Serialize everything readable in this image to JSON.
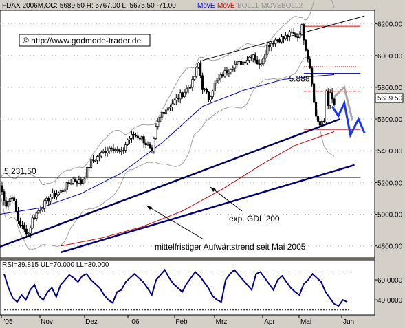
{
  "chart_data": [
    {
      "type": "candlestick",
      "header": {
        "symbol": "FDAX 2006M,CC",
        "ohlc": "C: 5689.50 H: 5767.00 L: 5675.50 -71.00",
        "legend": [
          {
            "name": "MovE",
            "color": "#0000cc"
          },
          {
            "name": "MovE",
            "color": "#cc0000"
          },
          {
            "name": "BOLL1",
            "color": "#909090"
          },
          {
            "name": "MOVS",
            "color": "#909090"
          },
          {
            "name": "BOLL2",
            "color": "#909090"
          }
        ]
      },
      "watermark": "© http://www.godmode-trader.de",
      "last_price": "5689.50",
      "x_tick_labels": [
        "'05",
        "Nov",
        "Dez",
        "'06",
        "Feb",
        "Mrz",
        "Apr",
        "Mai",
        "Jun"
      ],
      "y_ticks": [
        4800,
        5000,
        5200,
        5400,
        5600,
        5800,
        6000,
        6200
      ],
      "y_tick_labels": [
        "4800.00",
        "5000.00",
        "5200.00",
        "5400.00",
        "5600.00",
        "5800.00",
        "6000.00",
        "6200.00"
      ],
      "ylim": [
        4725,
        6285
      ],
      "xlim": [
        0,
        185
      ],
      "close_path": [
        [
          0,
          5180
        ],
        [
          3,
          5060
        ],
        [
          6,
          5120
        ],
        [
          9,
          4960
        ],
        [
          12,
          4900
        ],
        [
          14,
          4880
        ],
        [
          16,
          4970
        ],
        [
          20,
          5040
        ],
        [
          25,
          5110
        ],
        [
          30,
          5140
        ],
        [
          36,
          5220
        ],
        [
          40,
          5200
        ],
        [
          45,
          5330
        ],
        [
          50,
          5380
        ],
        [
          55,
          5430
        ],
        [
          60,
          5380
        ],
        [
          63,
          5470
        ],
        [
          66,
          5500
        ],
        [
          70,
          5480
        ],
        [
          73,
          5430
        ],
        [
          75,
          5380
        ],
        [
          77,
          5540
        ],
        [
          80,
          5640
        ],
        [
          85,
          5700
        ],
        [
          90,
          5760
        ],
        [
          95,
          5830
        ],
        [
          98,
          5950
        ],
        [
          100,
          5800
        ],
        [
          103,
          5730
        ],
        [
          106,
          5820
        ],
        [
          110,
          5880
        ],
        [
          115,
          5940
        ],
        [
          120,
          5960
        ],
        [
          125,
          6010
        ],
        [
          128,
          5930
        ],
        [
          132,
          6060
        ],
        [
          136,
          6100
        ],
        [
          140,
          6110
        ],
        [
          144,
          6140
        ],
        [
          147,
          6120
        ],
        [
          149,
          6180
        ],
        [
          151,
          6050
        ],
        [
          153,
          5930
        ],
        [
          154,
          5840
        ],
        [
          155,
          5700
        ],
        [
          156,
          5620
        ],
        [
          158,
          5560
        ],
        [
          160,
          5580
        ],
        [
          161,
          5780
        ],
        [
          162,
          5700
        ],
        [
          163,
          5750
        ],
        [
          165,
          5690
        ]
      ],
      "lines": {
        "ema_blue": [
          [
            0,
            5000
          ],
          [
            20,
            5040
          ],
          [
            40,
            5130
          ],
          [
            60,
            5260
          ],
          [
            80,
            5450
          ],
          [
            100,
            5680
          ],
          [
            120,
            5780
          ],
          [
            140,
            5850
          ],
          [
            155,
            5870
          ],
          [
            165,
            5880
          ]
        ],
        "ema_red_gdl200": [
          [
            30,
            4800
          ],
          [
            50,
            4850
          ],
          [
            70,
            4920
          ],
          [
            90,
            5020
          ],
          [
            110,
            5160
          ],
          [
            130,
            5320
          ],
          [
            145,
            5430
          ],
          [
            158,
            5490
          ],
          [
            165,
            5520
          ]
        ],
        "trend_mittelfristig": [
          [
            0,
            4795
          ],
          [
            168,
            5600
          ]
        ],
        "trend_lower": [
          [
            30,
            4760
          ],
          [
            175,
            5310
          ]
        ],
        "upper_channel": [
          [
            100,
            5970
          ],
          [
            180,
            6250
          ]
        ],
        "resistance_5231": [
          [
            0,
            5232
          ],
          [
            178,
            5232
          ]
        ],
        "pattern_grey": [
          [
            165,
            5740
          ],
          [
            170,
            5800
          ],
          [
            174,
            5590
          ]
        ],
        "pattern_blue": [
          [
            164,
            5680
          ],
          [
            167,
            5620
          ],
          [
            170,
            5700
          ],
          [
            173,
            5500
          ],
          [
            177,
            5600
          ],
          [
            180,
            5510
          ]
        ]
      },
      "horizontal_levels": [
        {
          "value": 6185,
          "color": "#dd0000"
        },
        {
          "value": 5930,
          "color": "#cc0000",
          "style": "dotted"
        },
        {
          "value": 5888,
          "color": "#0000aa"
        },
        {
          "value": 5775,
          "color": "#cc0000",
          "style": "dashed"
        },
        {
          "value": 5535,
          "color": "#cc0000"
        }
      ],
      "annotations": [
        {
          "text": "5.888"
        },
        {
          "text": "5.231,50"
        },
        {
          "text": "exp. GDL 200"
        },
        {
          "text": "mittelfristiger Aufwärtstrend seit Mai 2005"
        }
      ]
    },
    {
      "type": "line",
      "title": "RSI=39.815 UL=70.000 LL=30.000",
      "series": [
        {
          "name": "RSI",
          "color": "#00008b",
          "values": [
            66,
            52,
            42,
            38,
            45,
            40,
            50,
            55,
            44,
            40,
            48,
            52,
            43,
            55,
            60,
            65,
            62,
            58,
            64,
            66,
            60,
            56,
            52,
            45,
            40,
            37,
            48,
            50,
            58,
            62,
            66,
            62,
            58,
            52,
            45,
            60,
            65,
            70,
            62,
            56,
            52,
            48,
            56,
            62,
            68,
            64,
            58,
            52,
            44,
            40,
            38,
            60,
            66,
            70,
            65,
            60,
            55,
            50,
            66,
            68,
            62,
            56,
            50,
            60,
            64,
            58,
            52,
            48,
            45,
            56,
            60,
            66,
            62,
            58,
            48,
            42,
            36,
            34,
            40,
            38
          ]
        }
      ],
      "y_tick_labels": [
        "40.0000",
        "60.0000"
      ],
      "y_ticks": [
        40,
        60
      ],
      "ylim": [
        25,
        80
      ],
      "upper_limit": 70,
      "lower_limit": 30
    }
  ]
}
